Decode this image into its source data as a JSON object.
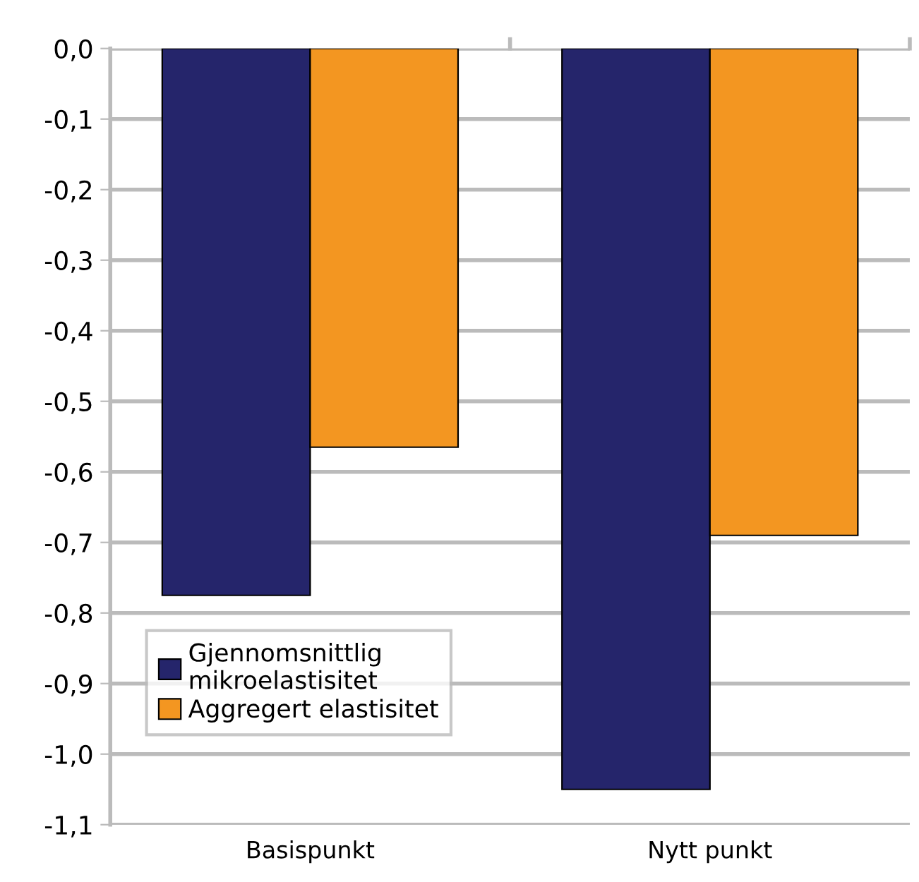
{
  "chart_data": {
    "type": "bar",
    "categories": [
      "Basispunkt",
      "Nytt punkt"
    ],
    "series": [
      {
        "name": "Gjennomsnittlig\nmikroelastisitet",
        "color": "#25256b",
        "values": [
          -0.775,
          -1.05
        ]
      },
      {
        "name": "Aggregert elastisitet",
        "color": "#f39621",
        "values": [
          -0.565,
          -0.69
        ]
      }
    ],
    "ylim": [
      -1.1,
      0
    ],
    "yticks": [
      {
        "value": 0,
        "label": "0,0"
      },
      {
        "value": -0.1,
        "label": "-0,1"
      },
      {
        "value": -0.2,
        "label": "-0,2"
      },
      {
        "value": -0.3,
        "label": "-0,3"
      },
      {
        "value": -0.4,
        "label": "-0,4"
      },
      {
        "value": -0.5,
        "label": "-0,5"
      },
      {
        "value": -0.6,
        "label": "-0,6"
      },
      {
        "value": -0.7,
        "label": "-0,7"
      },
      {
        "value": -0.8,
        "label": "-0,8"
      },
      {
        "value": -0.9,
        "label": "-0,9"
      },
      {
        "value": -1.0,
        "label": "-1,0"
      },
      {
        "value": -1.1,
        "label": "-1,1"
      }
    ],
    "grid": "y",
    "legend": "bottom left"
  }
}
